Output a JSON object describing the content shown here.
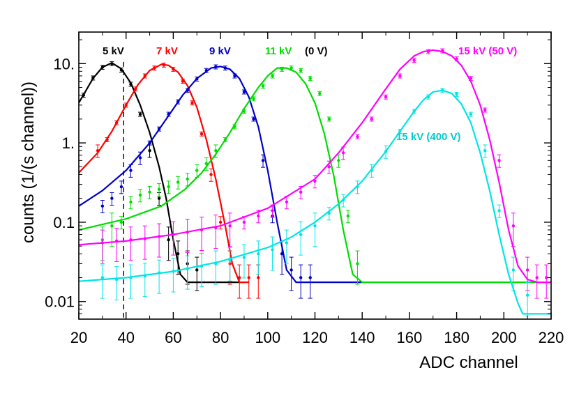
{
  "chart_data": {
    "type": "line",
    "title": "",
    "xlabel": "ADC channel",
    "ylabel": "counts (1/(s channel))",
    "xlim": [
      20,
      220
    ],
    "ylim": [
      0.006,
      25
    ],
    "yscale": "log",
    "x_ticks": [
      20,
      40,
      60,
      80,
      100,
      120,
      140,
      160,
      180,
      200,
      220
    ],
    "y_ticks": [
      {
        "value": 0.01,
        "label": "0.01"
      },
      {
        "value": 0.1,
        "label": "0.1"
      },
      {
        "value": 1,
        "label": "1."
      },
      {
        "value": 10,
        "label": "10."
      }
    ],
    "cut_line": {
      "x": 39,
      "style": "dashed"
    },
    "series": [
      {
        "name": "5 kV",
        "label": "5 kV",
        "color": "#000000",
        "x": [
          20,
          26,
          30,
          34,
          38,
          42,
          46,
          50,
          54,
          57,
          60,
          63,
          66,
          75,
          90
        ],
        "y": [
          3.2,
          6.5,
          9.0,
          10.2,
          8.6,
          5.7,
          3.0,
          1.35,
          0.5,
          0.2,
          0.06,
          0.022,
          0.0175,
          0.0175,
          0.0175
        ],
        "points_x": [
          22,
          26,
          30,
          34,
          38,
          42,
          46,
          50,
          54,
          58,
          62,
          66,
          70
        ],
        "points_y": [
          4.0,
          6.6,
          9.0,
          10.0,
          8.3,
          5.5,
          2.3,
          0.8,
          0.2,
          0.06,
          0.04,
          0.03,
          0.025
        ]
      },
      {
        "name": "7 kV",
        "label": "7 kV",
        "color": "#ff0000",
        "x": [
          20,
          28,
          34,
          40,
          45,
          50,
          55,
          58,
          62,
          66,
          70,
          74,
          78,
          82,
          85,
          88,
          92
        ],
        "y": [
          0.42,
          0.75,
          1.4,
          3.0,
          5.4,
          8.2,
          9.8,
          9.5,
          7.8,
          5.3,
          2.8,
          1.1,
          0.35,
          0.09,
          0.03,
          0.0175,
          0.0175
        ],
        "points_x": [
          28,
          32,
          36,
          40,
          44,
          48,
          52,
          56,
          60,
          64,
          68,
          72,
          76,
          80,
          84,
          88,
          92,
          96
        ],
        "points_y": [
          0.8,
          1.1,
          1.8,
          3.0,
          4.8,
          7.0,
          8.8,
          9.6,
          8.5,
          6.0,
          3.2,
          1.3,
          0.4,
          0.1,
          0.03,
          0.02,
          0.02,
          0.02
        ]
      },
      {
        "name": "9 kV",
        "label": "9 kV",
        "color": "#0000cc",
        "x": [
          20,
          30,
          40,
          50,
          58,
          64,
          70,
          76,
          80,
          84,
          88,
          92,
          96,
          100,
          104,
          108,
          112,
          140
        ],
        "y": [
          0.16,
          0.25,
          0.45,
          1.0,
          2.2,
          4.0,
          6.5,
          8.8,
          9.2,
          8.5,
          6.5,
          3.8,
          1.6,
          0.45,
          0.1,
          0.025,
          0.0175,
          0.0175
        ],
        "points_x": [
          30,
          34,
          38,
          42,
          46,
          50,
          54,
          58,
          62,
          66,
          70,
          74,
          78,
          82,
          86,
          90,
          94,
          98,
          102,
          106,
          110,
          114,
          118
        ],
        "points_y": [
          0.16,
          0.2,
          0.28,
          0.45,
          0.65,
          1.0,
          1.5,
          2.3,
          3.3,
          4.6,
          6.4,
          8.2,
          9.1,
          8.8,
          7.0,
          4.4,
          2.0,
          0.6,
          0.12,
          0.04,
          0.025,
          0.02,
          0.02
        ]
      },
      {
        "name": "11 kV (0 V)",
        "label": "11 kV",
        "color": "#00dd00",
        "x": [
          20,
          40,
          55,
          65,
          72,
          78,
          84,
          90,
          96,
          100,
          104,
          108,
          112,
          116,
          120,
          124,
          128,
          132,
          136,
          140,
          220
        ],
        "y": [
          0.08,
          0.11,
          0.16,
          0.26,
          0.42,
          0.72,
          1.35,
          2.7,
          5.0,
          7.0,
          8.8,
          8.8,
          7.8,
          5.6,
          3.2,
          1.3,
          0.38,
          0.08,
          0.022,
          0.0175,
          0.0175
        ],
        "points_x": [
          30,
          34,
          38,
          42,
          46,
          50,
          54,
          58,
          62,
          66,
          70,
          74,
          78,
          82,
          86,
          90,
          94,
          98,
          102,
          106,
          110,
          114,
          118,
          122,
          126,
          130,
          134,
          138
        ],
        "points_y": [
          0.06,
          0.09,
          0.1,
          0.18,
          0.22,
          0.24,
          0.26,
          0.28,
          0.32,
          0.35,
          0.45,
          0.55,
          0.8,
          1.1,
          1.6,
          2.5,
          3.6,
          5.2,
          7.0,
          8.5,
          8.8,
          8.2,
          6.5,
          4.2,
          2.0,
          0.6,
          0.12,
          0.03
        ]
      },
      {
        "name": "15 kV (50 V)",
        "label": "15 kV (50 V)",
        "color": "#ff00ff",
        "x": [
          20,
          40,
          60,
          80,
          100,
          120,
          130,
          140,
          150,
          156,
          162,
          166,
          170,
          174,
          178,
          182,
          186,
          190,
          194,
          198,
          202,
          206,
          210,
          214,
          220
        ],
        "y": [
          0.052,
          0.058,
          0.07,
          0.09,
          0.15,
          0.35,
          0.75,
          1.8,
          4.8,
          8.5,
          12.5,
          14.2,
          14.8,
          14.2,
          12.5,
          9.5,
          6.0,
          3.0,
          1.1,
          0.32,
          0.08,
          0.028,
          0.019,
          0.0175,
          0.0175
        ],
        "points_x": [
          30,
          36,
          42,
          48,
          54,
          60,
          66,
          72,
          78,
          84,
          90,
          96,
          102,
          108,
          114,
          120,
          126,
          132,
          138,
          144,
          150,
          156,
          162,
          168,
          174,
          180,
          186,
          192,
          198,
          204,
          210,
          214,
          218
        ],
        "points_y": [
          0.055,
          0.058,
          0.06,
          0.062,
          0.066,
          0.07,
          0.075,
          0.08,
          0.085,
          0.09,
          0.1,
          0.12,
          0.14,
          0.18,
          0.24,
          0.33,
          0.5,
          0.75,
          1.2,
          2.0,
          3.8,
          7.0,
          11.0,
          14.2,
          14.5,
          11.5,
          6.5,
          2.6,
          0.6,
          0.09,
          0.025,
          0.02,
          0.02
        ]
      },
      {
        "name": "15 kV (400 V)",
        "label": "15 kV (400 V)",
        "color": "#00e5e5",
        "x": [
          20,
          40,
          60,
          80,
          100,
          110,
          120,
          130,
          140,
          150,
          156,
          162,
          166,
          170,
          174,
          178,
          182,
          186,
          190,
          194,
          198,
          202,
          206,
          208,
          212,
          216,
          220
        ],
        "y": [
          0.018,
          0.02,
          0.024,
          0.032,
          0.048,
          0.065,
          0.1,
          0.17,
          0.33,
          0.78,
          1.4,
          2.5,
          3.5,
          4.4,
          4.6,
          4.2,
          3.1,
          1.8,
          0.75,
          0.25,
          0.07,
          0.022,
          0.0095,
          0.007,
          0.007,
          0.007,
          0.007
        ],
        "points_x": [
          30,
          36,
          42,
          48,
          54,
          60,
          66,
          72,
          78,
          84,
          90,
          96,
          102,
          108,
          114,
          120,
          126,
          132,
          138,
          144,
          150,
          156,
          162,
          168,
          174,
          180,
          186,
          192,
          198,
          204,
          210
        ],
        "points_y": [
          0.02,
          0.019,
          0.02,
          0.021,
          0.023,
          0.024,
          0.026,
          0.028,
          0.03,
          0.033,
          0.036,
          0.04,
          0.045,
          0.055,
          0.07,
          0.09,
          0.13,
          0.19,
          0.28,
          0.45,
          0.78,
          1.4,
          2.5,
          3.8,
          4.6,
          4.1,
          2.3,
          0.8,
          0.14,
          0.025,
          0.012
        ]
      }
    ],
    "annotations": [
      {
        "text": "5 kV",
        "color": "#000000"
      },
      {
        "text": "7 kV",
        "color": "#ff0000"
      },
      {
        "text": "9 kV",
        "color": "#0000cc"
      },
      {
        "text": "11 kV",
        "color": "#00dd00"
      },
      {
        "text": "(0 V)",
        "color": "#000000"
      },
      {
        "text": "15 kV (50 V)",
        "color": "#ff00ff"
      },
      {
        "text": "15 kV (400 V)",
        "color": "#00cccc"
      }
    ]
  }
}
